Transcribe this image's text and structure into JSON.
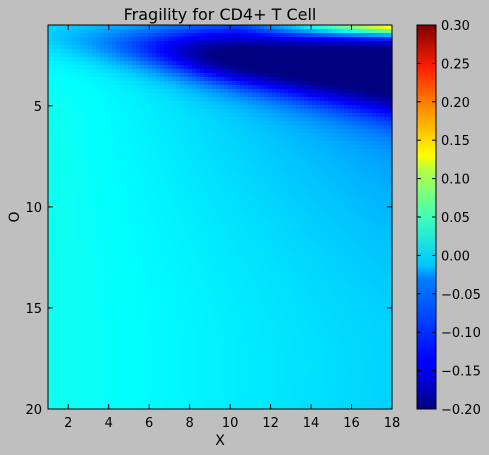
{
  "chart_data": {
    "type": "heatmap",
    "title": "Fragility for CD4+ T Cell",
    "xlabel": "X",
    "ylabel": "O",
    "xlim": [
      1,
      18
    ],
    "ylim": [
      20,
      1
    ],
    "x_ticks": [
      2,
      4,
      6,
      8,
      10,
      12,
      14,
      16,
      18
    ],
    "y_ticks": [
      5,
      10,
      15,
      20
    ],
    "colormap": "jet",
    "color_range": [
      -0.2,
      0.3
    ],
    "colorbar_ticks": [
      "0.30",
      "0.25",
      "0.20",
      "0.15",
      "0.10",
      "0.05",
      "0.00",
      "−0.05",
      "−0.10",
      "−0.15",
      "−0.20"
    ],
    "grid": false,
    "value_samples": [
      {
        "x": 1,
        "y": 1,
        "value": -0.04
      },
      {
        "x": 1,
        "y": 5,
        "value": -0.01
      },
      {
        "x": 1,
        "y": 20,
        "value": 0.0
      },
      {
        "x": 6,
        "y": 1,
        "value": -0.18
      },
      {
        "x": 6,
        "y": 5,
        "value": -0.04
      },
      {
        "x": 10,
        "y": 1,
        "value": -0.2
      },
      {
        "x": 10,
        "y": 3,
        "value": -0.15
      },
      {
        "x": 14,
        "y": 1,
        "value": -0.02
      },
      {
        "x": 14,
        "y": 3,
        "value": -0.2
      },
      {
        "x": 18,
        "y": 1,
        "value": 0.06
      },
      {
        "x": 18,
        "y": 3,
        "value": -0.19
      },
      {
        "x": 18,
        "y": 5,
        "value": -0.14
      },
      {
        "x": 18,
        "y": 10,
        "value": -0.07
      },
      {
        "x": 18,
        "y": 20,
        "value": -0.03
      }
    ]
  }
}
